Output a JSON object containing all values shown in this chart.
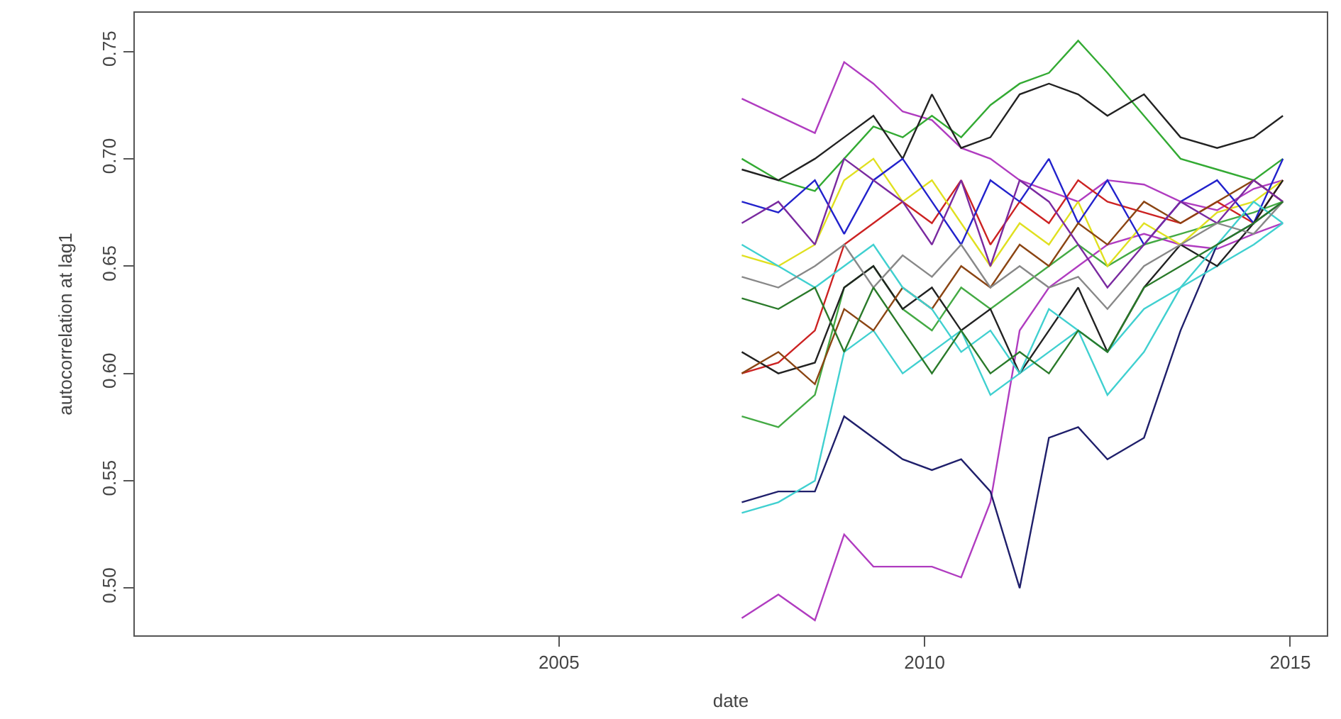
{
  "chart_data": {
    "type": "line",
    "xlabel": "date",
    "ylabel": "autocorrelation at lag1",
    "x": [
      2007.5,
      2008,
      2008.5,
      2008.9,
      2009.3,
      2009.7,
      2010.1,
      2010.5,
      2010.9,
      2011.3,
      2011.7,
      2012.1,
      2012.5,
      2013,
      2013.5,
      2014,
      2014.5,
      2014.9
    ],
    "xlim": [
      1999.2,
      2015.5
    ],
    "xticks": [
      2005,
      2010,
      2015
    ],
    "ylim": [
      0.478,
      0.768
    ],
    "yticks": [
      {
        "value": 0.5,
        "label": "0.50"
      },
      0.55,
      {
        "value": 0.6,
        "label": "0.60"
      },
      0.65,
      {
        "value": 0.7,
        "label": "0.70"
      },
      0.75
    ],
    "marker": "none",
    "line_style": "solid",
    "series": [
      {
        "color": "#b03cc0",
        "values": [
          0.728,
          0.72,
          0.712,
          0.745,
          0.735,
          0.722,
          0.718,
          0.705,
          0.7,
          0.69,
          0.685,
          0.68,
          0.69,
          0.688,
          0.68,
          0.676,
          0.686,
          0.69
        ]
      },
      {
        "color": "#b03cc0",
        "values": [
          0.486,
          0.497,
          0.485,
          0.525,
          0.51,
          0.51,
          0.51,
          0.505,
          0.54,
          0.62,
          0.64,
          0.65,
          0.66,
          0.665,
          0.66,
          0.658,
          0.665,
          0.67
        ]
      },
      {
        "color": "#1f1f6b",
        "values": [
          0.54,
          0.545,
          0.545,
          0.58,
          0.57,
          0.56,
          0.555,
          0.56,
          0.545,
          0.5,
          0.57,
          0.575,
          0.56,
          0.57,
          0.62,
          0.66,
          0.67,
          0.68
        ]
      },
      {
        "color": "#33aa33",
        "values": [
          0.7,
          0.69,
          0.685,
          0.7,
          0.715,
          0.71,
          0.72,
          0.71,
          0.725,
          0.735,
          0.74,
          0.755,
          0.74,
          0.72,
          0.7,
          0.695,
          0.69,
          0.7
        ]
      },
      {
        "color": "#222222",
        "values": [
          0.695,
          0.69,
          0.7,
          0.71,
          0.72,
          0.7,
          0.73,
          0.705,
          0.71,
          0.73,
          0.735,
          0.73,
          0.72,
          0.73,
          0.71,
          0.705,
          0.71,
          0.72
        ]
      },
      {
        "color": "#40d0d0",
        "values": [
          0.535,
          0.54,
          0.55,
          0.61,
          0.62,
          0.6,
          0.61,
          0.62,
          0.59,
          0.6,
          0.61,
          0.62,
          0.61,
          0.63,
          0.64,
          0.65,
          0.66,
          0.67
        ]
      },
      {
        "color": "#44aa44",
        "values": [
          0.58,
          0.575,
          0.59,
          0.64,
          0.65,
          0.63,
          0.62,
          0.64,
          0.63,
          0.64,
          0.65,
          0.66,
          0.65,
          0.66,
          0.665,
          0.67,
          0.675,
          0.68
        ]
      },
      {
        "color": "#cc2222",
        "values": [
          0.6,
          0.605,
          0.62,
          0.66,
          0.67,
          0.68,
          0.67,
          0.69,
          0.66,
          0.68,
          0.67,
          0.69,
          0.68,
          0.675,
          0.67,
          0.68,
          0.67,
          0.69
        ]
      },
      {
        "color": "#e0e020",
        "values": [
          0.655,
          0.65,
          0.66,
          0.69,
          0.7,
          0.68,
          0.69,
          0.67,
          0.65,
          0.67,
          0.66,
          0.68,
          0.65,
          0.67,
          0.66,
          0.675,
          0.68,
          0.69
        ]
      },
      {
        "color": "#2222cc",
        "values": [
          0.68,
          0.675,
          0.69,
          0.665,
          0.69,
          0.7,
          0.68,
          0.66,
          0.69,
          0.68,
          0.7,
          0.67,
          0.69,
          0.66,
          0.68,
          0.69,
          0.67,
          0.7
        ]
      },
      {
        "color": "#222222",
        "values": [
          0.61,
          0.6,
          0.605,
          0.64,
          0.65,
          0.63,
          0.64,
          0.62,
          0.63,
          0.6,
          0.62,
          0.64,
          0.61,
          0.64,
          0.66,
          0.65,
          0.67,
          0.69
        ]
      },
      {
        "color": "#8b4513",
        "values": [
          0.6,
          0.61,
          0.595,
          0.63,
          0.62,
          0.64,
          0.63,
          0.65,
          0.64,
          0.66,
          0.65,
          0.67,
          0.66,
          0.68,
          0.67,
          0.68,
          0.69,
          0.68
        ]
      },
      {
        "color": "#40d0d0",
        "values": [
          0.66,
          0.65,
          0.64,
          0.65,
          0.66,
          0.64,
          0.63,
          0.61,
          0.62,
          0.6,
          0.63,
          0.62,
          0.59,
          0.61,
          0.64,
          0.66,
          0.68,
          0.67
        ]
      },
      {
        "color": "#7a2aa0",
        "values": [
          0.67,
          0.68,
          0.66,
          0.7,
          0.69,
          0.68,
          0.66,
          0.69,
          0.65,
          0.69,
          0.68,
          0.66,
          0.64,
          0.66,
          0.68,
          0.67,
          0.69,
          0.68
        ]
      },
      {
        "color": "#888888",
        "values": [
          0.645,
          0.64,
          0.65,
          0.66,
          0.64,
          0.655,
          0.645,
          0.66,
          0.64,
          0.65,
          0.64,
          0.645,
          0.63,
          0.65,
          0.66,
          0.67,
          0.665,
          0.68
        ]
      },
      {
        "color": "#2a7a2a",
        "values": [
          0.635,
          0.63,
          0.64,
          0.61,
          0.64,
          0.62,
          0.6,
          0.62,
          0.6,
          0.61,
          0.6,
          0.62,
          0.61,
          0.64,
          0.65,
          0.66,
          0.67,
          0.68
        ]
      }
    ]
  }
}
